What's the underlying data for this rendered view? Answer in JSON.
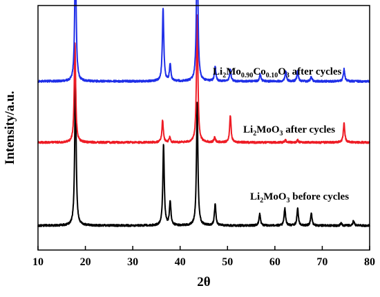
{
  "chart_data": {
    "type": "line",
    "xlabel": "2θ",
    "ylabel": "Intensity/a.u.",
    "xlim": [
      10,
      80
    ],
    "x_ticks": [
      "10",
      "20",
      "30",
      "40",
      "50",
      "60",
      "70",
      "80"
    ],
    "y_ticks": "none",
    "grid": false,
    "legend": "inline labels beside each curve",
    "series": [
      {
        "key": "before",
        "label_parts": [
          [
            "Li",
            false
          ],
          [
            "2",
            true
          ],
          [
            "MoO",
            false
          ],
          [
            "3",
            true
          ],
          [
            " before cycles",
            false
          ]
        ],
        "color": "#000000",
        "baseline": 0.1,
        "noise": 0.004,
        "peaks": [
          {
            "x": 17.9,
            "h": 0.61
          },
          {
            "x": 36.5,
            "h": 0.33
          },
          {
            "x": 37.9,
            "h": 0.1
          },
          {
            "x": 43.6,
            "h": 0.5
          },
          {
            "x": 47.4,
            "h": 0.09
          },
          {
            "x": 56.8,
            "h": 0.05
          },
          {
            "x": 62.1,
            "h": 0.07
          },
          {
            "x": 64.8,
            "h": 0.07
          },
          {
            "x": 67.7,
            "h": 0.05
          },
          {
            "x": 74.0,
            "h": 0.01
          },
          {
            "x": 76.6,
            "h": 0.02
          }
        ]
      },
      {
        "key": "after",
        "label_parts": [
          [
            "Li",
            false
          ],
          [
            "2",
            true
          ],
          [
            "MoO",
            false
          ],
          [
            "3",
            true
          ],
          [
            " after cycles",
            false
          ]
        ],
        "color": "#ee1c25",
        "baseline": 0.44,
        "noise": 0.004,
        "peaks": [
          {
            "x": 17.8,
            "h": 0.41
          },
          {
            "x": 36.3,
            "h": 0.09
          },
          {
            "x": 37.8,
            "h": 0.02
          },
          {
            "x": 43.6,
            "h": 0.52
          },
          {
            "x": 47.3,
            "h": 0.02
          },
          {
            "x": 50.6,
            "h": 0.11
          },
          {
            "x": 62.2,
            "h": 0.01
          },
          {
            "x": 64.8,
            "h": 0.01
          },
          {
            "x": 74.6,
            "h": 0.08
          }
        ]
      },
      {
        "key": "doped",
        "label_parts": [
          [
            "Li",
            false
          ],
          [
            "2",
            true
          ],
          [
            "Mo",
            false
          ],
          [
            "0.90",
            true
          ],
          [
            "Co",
            false
          ],
          [
            "0.10",
            true
          ],
          [
            "O",
            false
          ],
          [
            "3",
            true
          ],
          [
            " after cycles",
            false
          ]
        ],
        "color": "#1f2fe8",
        "baseline": 0.69,
        "noise": 0.004,
        "peaks": [
          {
            "x": 17.9,
            "h": 0.54
          },
          {
            "x": 36.4,
            "h": 0.3
          },
          {
            "x": 37.9,
            "h": 0.07
          },
          {
            "x": 43.6,
            "h": 0.62
          },
          {
            "x": 47.4,
            "h": 0.06
          },
          {
            "x": 50.6,
            "h": 0.05
          },
          {
            "x": 56.9,
            "h": 0.03
          },
          {
            "x": 62.3,
            "h": 0.04
          },
          {
            "x": 64.8,
            "h": 0.04
          },
          {
            "x": 67.7,
            "h": 0.02
          },
          {
            "x": 74.6,
            "h": 0.05
          }
        ]
      }
    ]
  }
}
